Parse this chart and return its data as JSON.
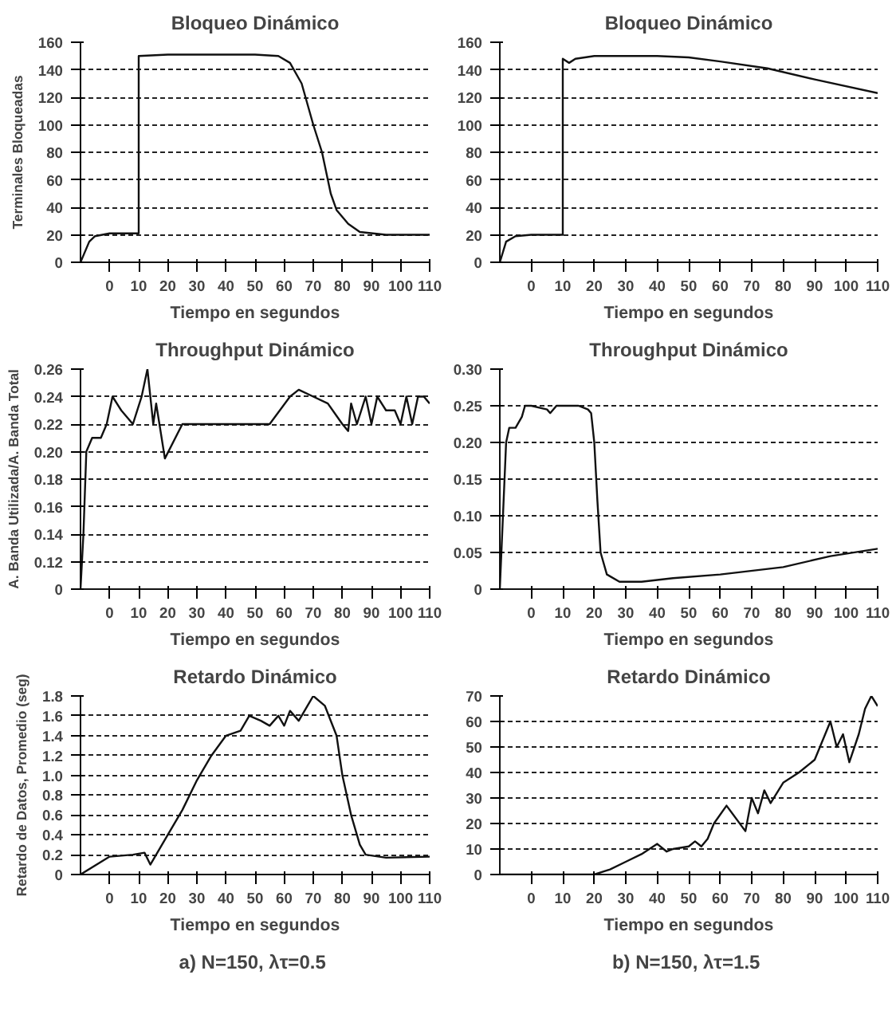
{
  "chart_data": [
    {
      "type": "line",
      "title": "Bloqueo Dinámico",
      "xlabel": "Tiempo en segundos",
      "ylabel": "Terminales Bloqueadas",
      "grid": "y",
      "xlim": [
        -10,
        110
      ],
      "xticks": [
        0,
        10,
        20,
        30,
        40,
        50,
        60,
        70,
        80,
        90,
        100,
        110
      ],
      "ylim": [
        0,
        160
      ],
      "yticks": [
        0,
        20,
        40,
        60,
        80,
        100,
        120,
        140,
        160
      ],
      "series": [
        {
          "color": "#111111",
          "x": [
            -10,
            -7,
            -5,
            0,
            10,
            10,
            20,
            50,
            58,
            62,
            66,
            70,
            73,
            76,
            78,
            82,
            86,
            95,
            110
          ],
          "values": [
            0,
            15,
            19,
            21,
            21,
            150,
            151,
            151,
            150,
            145,
            130,
            100,
            80,
            50,
            38,
            28,
            22,
            20,
            20
          ]
        }
      ]
    },
    {
      "type": "line",
      "title": "Bloqueo Dinámico",
      "xlabel": "Tiempo en segundos",
      "grid": "y",
      "xlim": [
        -10,
        110
      ],
      "xticks": [
        0,
        10,
        20,
        30,
        40,
        50,
        60,
        70,
        80,
        90,
        100,
        110
      ],
      "ylim": [
        0,
        160
      ],
      "yticks": [
        0,
        20,
        40,
        60,
        80,
        100,
        120,
        140,
        160
      ],
      "series": [
        {
          "color": "#111111",
          "x": [
            -10,
            -8,
            -5,
            0,
            10,
            10,
            12,
            14,
            20,
            40,
            50,
            60,
            75,
            90,
            110
          ],
          "values": [
            0,
            15,
            19,
            20,
            20,
            148,
            145,
            148,
            150,
            150,
            149,
            146,
            141,
            133,
            123
          ]
        }
      ]
    },
    {
      "type": "line",
      "title": "Throughput Dinámico",
      "xlabel": "Tiempo en segundos",
      "ylabel": "A. Banda Utilizada/A. Banda Total",
      "grid": "y",
      "xlim": [
        -10,
        110
      ],
      "xticks": [
        0,
        10,
        20,
        30,
        40,
        50,
        60,
        70,
        80,
        90,
        100,
        110
      ],
      "ylim": [
        0.1,
        0.26
      ],
      "yticks": [
        {
          "value": 0.1,
          "label": "0"
        },
        0.12,
        0.14,
        0.16,
        0.18,
        {
          "value": 0.2,
          "label": "0.20"
        },
        0.22,
        0.24,
        0.26
      ],
      "series": [
        {
          "color": "#111111",
          "x": [
            -10,
            -9,
            -8,
            -6,
            -3,
            -1,
            1,
            4,
            8,
            11,
            13,
            15,
            16,
            19,
            25,
            40,
            55,
            62,
            65,
            70,
            75,
            80,
            82,
            83,
            85,
            88,
            90,
            92,
            95,
            98,
            100,
            102,
            104,
            106,
            108,
            110
          ],
          "values": [
            0.1,
            0.14,
            0.2,
            0.21,
            0.21,
            0.22,
            0.24,
            0.23,
            0.22,
            0.24,
            0.26,
            0.22,
            0.235,
            0.195,
            0.22,
            0.22,
            0.22,
            0.24,
            0.245,
            0.24,
            0.235,
            0.22,
            0.215,
            0.235,
            0.22,
            0.24,
            0.22,
            0.24,
            0.23,
            0.23,
            0.22,
            0.24,
            0.22,
            0.24,
            0.24,
            0.235
          ]
        }
      ]
    },
    {
      "type": "line",
      "title": "Throughput Dinámico",
      "xlabel": "Tiempo en segundos",
      "grid": "y",
      "xlim": [
        -10,
        110
      ],
      "xticks": [
        0,
        10,
        20,
        30,
        40,
        50,
        60,
        70,
        80,
        90,
        100,
        110
      ],
      "ylim": [
        0,
        0.3
      ],
      "yticks": [
        0,
        0.05,
        {
          "value": 0.1,
          "label": "0.10"
        },
        0.15,
        {
          "value": 0.2,
          "label": "0.20"
        },
        0.25,
        {
          "value": 0.3,
          "label": "0.30"
        }
      ],
      "series": [
        {
          "color": "#111111",
          "x": [
            -10,
            -9,
            -8,
            -7,
            -5,
            -3,
            -2,
            0,
            5,
            6,
            8,
            15,
            18,
            19,
            20,
            21,
            22,
            24,
            28,
            35,
            45,
            60,
            80,
            95,
            110
          ],
          "values": [
            0,
            0.1,
            0.2,
            0.22,
            0.22,
            0.235,
            0.25,
            0.25,
            0.245,
            0.24,
            0.25,
            0.25,
            0.245,
            0.24,
            0.2,
            0.12,
            0.05,
            0.02,
            0.01,
            0.01,
            0.015,
            0.02,
            0.03,
            0.045,
            0.055
          ]
        }
      ]
    },
    {
      "type": "line",
      "title": "Retardo Dinámico",
      "xlabel": "Tiempo en segundos",
      "ylabel": "Retardo de Datos, Promedio (seg)",
      "grid": "y",
      "xlim": [
        -10,
        110
      ],
      "xticks": [
        0,
        10,
        20,
        30,
        40,
        50,
        60,
        70,
        80,
        90,
        100,
        110
      ],
      "ylim": [
        0,
        1.8
      ],
      "yticks": [
        0,
        0.2,
        0.4,
        0.6,
        0.8,
        {
          "value": 1.0,
          "label": "1.0"
        },
        1.2,
        1.4,
        1.6,
        1.8
      ],
      "annotations": [
        "a) N=150,  λτ=0.5"
      ],
      "series": [
        {
          "color": "#111111",
          "x": [
            -10,
            0,
            8,
            12,
            14,
            16,
            20,
            25,
            30,
            35,
            40,
            45,
            48,
            52,
            55,
            58,
            60,
            62,
            65,
            68,
            70,
            74,
            78,
            80,
            83,
            86,
            88,
            95,
            110
          ],
          "values": [
            0,
            0.18,
            0.2,
            0.22,
            0.1,
            0.2,
            0.4,
            0.65,
            0.95,
            1.2,
            1.4,
            1.45,
            1.6,
            1.55,
            1.5,
            1.6,
            1.5,
            1.65,
            1.55,
            1.7,
            1.8,
            1.7,
            1.4,
            1.0,
            0.6,
            0.3,
            0.2,
            0.17,
            0.18
          ]
        }
      ]
    },
    {
      "type": "line",
      "title": "Retardo Dinámico",
      "xlabel": "Tiempo en segundos",
      "grid": "y",
      "xlim": [
        -10,
        110
      ],
      "xticks": [
        0,
        10,
        20,
        30,
        40,
        50,
        60,
        70,
        80,
        90,
        100,
        110
      ],
      "ylim": [
        0,
        70
      ],
      "yticks": [
        0,
        10,
        20,
        30,
        40,
        50,
        60,
        70
      ],
      "annotations": [
        "b) N=150,  λτ=1.5"
      ],
      "series": [
        {
          "color": "#111111",
          "x": [
            -10,
            20,
            25,
            30,
            35,
            40,
            43,
            45,
            50,
            52,
            54,
            56,
            58,
            62,
            68,
            70,
            72,
            74,
            76,
            78,
            80,
            85,
            90,
            95,
            97,
            99,
            101,
            104,
            106,
            108,
            110
          ],
          "values": [
            0,
            0,
            2,
            5,
            8,
            12,
            9,
            10,
            11,
            13,
            11,
            14,
            20,
            27,
            17,
            30,
            24,
            33,
            28,
            32,
            36,
            40,
            45,
            60,
            50,
            55,
            44,
            55,
            65,
            70,
            66
          ]
        }
      ]
    }
  ]
}
